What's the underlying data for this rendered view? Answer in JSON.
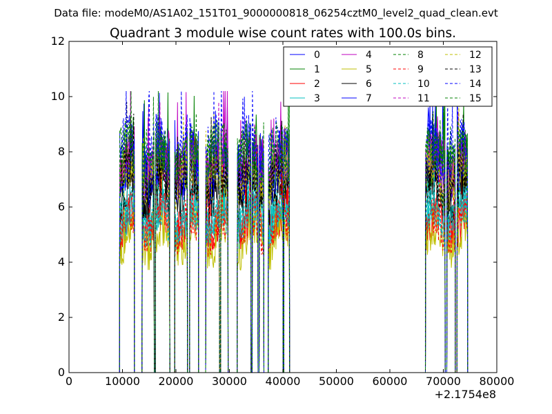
{
  "header": {
    "file_label": "Data file: modeM0/AS1A02_151T01_9000000818_06254cztM0_level2_quad_clean.evt"
  },
  "chart_data": {
    "type": "line",
    "title": "Quadrant 3 module wise count rates with 100.0s bins.",
    "xlabel": "",
    "ylabel": "",
    "xlim": [
      0,
      80000
    ],
    "ylim": [
      0,
      12
    ],
    "x_offset_label": "+2.1754e8",
    "x_ticks": [
      0,
      10000,
      20000,
      30000,
      40000,
      50000,
      60000,
      70000,
      80000
    ],
    "x_tick_labels": [
      "0",
      "10000",
      "20000",
      "30000",
      "40000",
      "50000",
      "60000",
      "70000",
      "80000"
    ],
    "y_ticks": [
      0,
      2,
      4,
      6,
      8,
      10,
      12
    ],
    "y_tick_labels": [
      "0",
      "2",
      "4",
      "6",
      "8",
      "10",
      "12"
    ],
    "grid": false,
    "legend_position": "top-right",
    "legend_columns": 4,
    "segments": [
      {
        "start": 9500,
        "end": 12200
      },
      {
        "start": 13700,
        "end": 15900
      },
      {
        "start": 16200,
        "end": 18800
      },
      {
        "start": 19800,
        "end": 22100
      },
      {
        "start": 22600,
        "end": 24200
      },
      {
        "start": 25600,
        "end": 28100
      },
      {
        "start": 28400,
        "end": 29700
      },
      {
        "start": 31500,
        "end": 34000
      },
      {
        "start": 34300,
        "end": 35300
      },
      {
        "start": 35600,
        "end": 36400
      },
      {
        "start": 37300,
        "end": 40000
      },
      {
        "start": 40200,
        "end": 41200
      },
      {
        "start": 66700,
        "end": 70300
      },
      {
        "start": 70700,
        "end": 72200
      },
      {
        "start": 72600,
        "end": 74500
      }
    ],
    "series": [
      {
        "name": "0",
        "color": "#0000ff",
        "dash": "solid",
        "level": 7.6
      },
      {
        "name": "1",
        "color": "#008000",
        "dash": "solid",
        "level": 7.5
      },
      {
        "name": "2",
        "color": "#ff0000",
        "dash": "solid",
        "level": 5.5
      },
      {
        "name": "3",
        "color": "#00bfbf",
        "dash": "solid",
        "level": 5.8
      },
      {
        "name": "4",
        "color": "#bf00bf",
        "dash": "solid",
        "level": 7.7
      },
      {
        "name": "5",
        "color": "#bfbf00",
        "dash": "solid",
        "level": 4.9
      },
      {
        "name": "6",
        "color": "#000000",
        "dash": "solid",
        "level": 6.6
      },
      {
        "name": "7",
        "color": "#0000ff",
        "dash": "solid",
        "level": 7.2
      },
      {
        "name": "8",
        "color": "#008000",
        "dash": "dashed",
        "level": 7.8
      },
      {
        "name": "9",
        "color": "#ff0000",
        "dash": "dashed",
        "level": 5.3
      },
      {
        "name": "10",
        "color": "#00bfbf",
        "dash": "dashed",
        "level": 5.6
      },
      {
        "name": "11",
        "color": "#bf00bf",
        "dash": "dashed",
        "level": 7.4
      },
      {
        "name": "12",
        "color": "#bfbf00",
        "dash": "dashed",
        "level": 7.0
      },
      {
        "name": "13",
        "color": "#000000",
        "dash": "dashed",
        "level": 6.9
      },
      {
        "name": "14",
        "color": "#0000ff",
        "dash": "dashed",
        "level": 8.1
      },
      {
        "name": "15",
        "color": "#008000",
        "dash": "dashed",
        "level": 7.9
      }
    ]
  }
}
